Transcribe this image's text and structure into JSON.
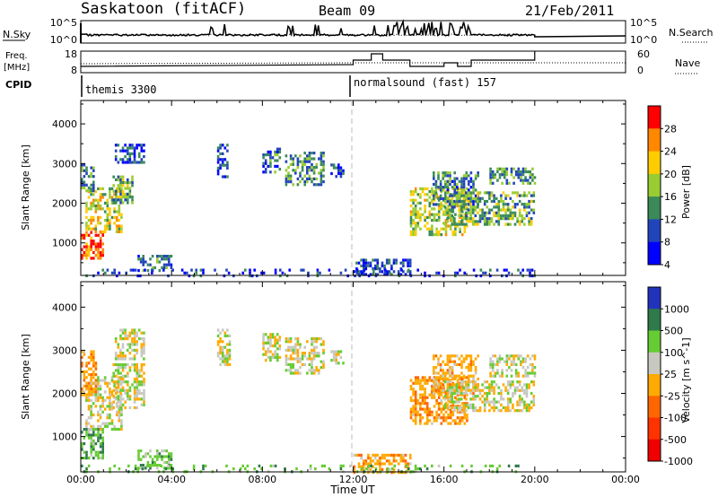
{
  "header": {
    "title": "Saskatoon (fitACF)",
    "beam": "Beam 09",
    "date": "21/Feb/2011"
  },
  "panels": {
    "nsky": {
      "label": "N.Sky",
      "ticks_left": [
        "10^5",
        "10^0"
      ],
      "ticks_right": [
        "10^5",
        "10^0"
      ],
      "right_label": "N.Search"
    },
    "freq": {
      "label_line1": "Freq.",
      "label_line2": "[MHz]",
      "ticks_left": [
        "18",
        "8"
      ],
      "ticks_right": [
        "60",
        "0"
      ],
      "right_label": "Nave"
    },
    "cpid": {
      "label": "CPID",
      "segments": [
        {
          "start": 0,
          "label": "themis 3300"
        },
        {
          "start": 12,
          "label": "normalsound (fast) 157"
        }
      ]
    }
  },
  "chart_data": [
    {
      "type": "heatmap",
      "name": "power",
      "ylabel": "Slant Range [km]",
      "yticks": [
        "4000",
        "3000",
        "2000",
        "1000"
      ],
      "ylim": [
        180,
        4590
      ],
      "colorbar_label": "Power [dB]",
      "colorbar_ticks": [
        "28",
        "24",
        "20",
        "16",
        "12",
        "8",
        "4"
      ],
      "colors": [
        "#0000ff",
        "#2244bb",
        "#3a8a5a",
        "#99cc33",
        "#ffcc00",
        "#ff8800",
        "#ff0000"
      ],
      "regions": [
        {
          "t": [
            0.0,
            1.0
          ],
          "r": [
            600,
            1300
          ],
          "v": 26
        },
        {
          "t": [
            0.2,
            1.8
          ],
          "r": [
            1300,
            2400
          ],
          "v": 18
        },
        {
          "t": [
            1.4,
            2.3
          ],
          "r": [
            2000,
            2700
          ],
          "v": 14
        },
        {
          "t": [
            0.0,
            0.6
          ],
          "r": [
            2300,
            3000
          ],
          "v": 12
        },
        {
          "t": [
            1.5,
            2.8
          ],
          "r": [
            3000,
            3500
          ],
          "v": 8
        },
        {
          "t": [
            2.5,
            4.0
          ],
          "r": [
            300,
            700
          ],
          "v": 10
        },
        {
          "t": [
            6.0,
            6.5
          ],
          "r": [
            2700,
            3500
          ],
          "v": 8
        },
        {
          "t": [
            8.0,
            8.8
          ],
          "r": [
            2800,
            3400
          ],
          "v": 9
        },
        {
          "t": [
            9.0,
            10.7
          ],
          "r": [
            2500,
            3300
          ],
          "v": 12
        },
        {
          "t": [
            11.0,
            11.6
          ],
          "r": [
            2700,
            3000
          ],
          "v": 8
        },
        {
          "t": [
            12.0,
            14.5
          ],
          "r": [
            200,
            600
          ],
          "v": 8
        },
        {
          "t": [
            14.5,
            17.0
          ],
          "r": [
            1200,
            2400
          ],
          "v": 17
        },
        {
          "t": [
            15.5,
            17.5
          ],
          "r": [
            2000,
            2800
          ],
          "v": 11
        },
        {
          "t": [
            16.0,
            20.0
          ],
          "r": [
            1500,
            2300
          ],
          "v": 14
        },
        {
          "t": [
            18.0,
            20.0
          ],
          "r": [
            2500,
            2900
          ],
          "v": 12
        },
        {
          "t": [
            0.0,
            20.0
          ],
          "r": [
            180,
            350
          ],
          "v": 6
        }
      ]
    },
    {
      "type": "heatmap",
      "name": "velocity",
      "ylabel": "Slant Range [km]",
      "yticks": [
        "4000",
        "3000",
        "2000",
        "1000"
      ],
      "ylim": [
        180,
        4590
      ],
      "colorbar_label": "Velocity [m s^-1]",
      "colorbar_ticks": [
        "1000",
        "500",
        "100",
        "25",
        "-25",
        "-100",
        "-500",
        "-1000"
      ],
      "colors": [
        "#2233bb",
        "#2f7a4a",
        "#66cc33",
        "#c8c8c0",
        "#ffaa00",
        "#ff6600",
        "#ff3300",
        "#ee0000"
      ],
      "regions": [
        {
          "t": [
            0.0,
            1.0
          ],
          "r": [
            500,
            1200
          ],
          "v": 80
        },
        {
          "t": [
            0.2,
            1.8
          ],
          "r": [
            1200,
            2400
          ],
          "v": 0
        },
        {
          "t": [
            1.4,
            2.8
          ],
          "r": [
            1700,
            2700
          ],
          "v": 0
        },
        {
          "t": [
            0.0,
            0.7
          ],
          "r": [
            2000,
            3000
          ],
          "v": -80
        },
        {
          "t": [
            1.5,
            2.8
          ],
          "r": [
            2800,
            3500
          ],
          "v": 0
        },
        {
          "t": [
            2.5,
            4.0
          ],
          "r": [
            250,
            700
          ],
          "v": 60
        },
        {
          "t": [
            6.0,
            6.6
          ],
          "r": [
            2700,
            3500
          ],
          "v": 0
        },
        {
          "t": [
            8.0,
            8.8
          ],
          "r": [
            2800,
            3400
          ],
          "v": 0
        },
        {
          "t": [
            9.0,
            10.7
          ],
          "r": [
            2500,
            3300
          ],
          "v": 0
        },
        {
          "t": [
            11.0,
            11.6
          ],
          "r": [
            2700,
            3000
          ],
          "v": 0
        },
        {
          "t": [
            12.0,
            14.5
          ],
          "r": [
            200,
            600
          ],
          "v": -70
        },
        {
          "t": [
            14.5,
            17.0
          ],
          "r": [
            1300,
            2400
          ],
          "v": -80
        },
        {
          "t": [
            15.5,
            17.5
          ],
          "r": [
            2000,
            2900
          ],
          "v": -60
        },
        {
          "t": [
            16.0,
            20.0
          ],
          "r": [
            1600,
            2300
          ],
          "v": 0
        },
        {
          "t": [
            18.0,
            20.0
          ],
          "r": [
            2400,
            2900
          ],
          "v": 0
        },
        {
          "t": [
            0.0,
            20.0
          ],
          "r": [
            180,
            350
          ],
          "v": 70
        }
      ]
    }
  ],
  "x_axis": {
    "label": "Time UT",
    "ticks": [
      "00:00",
      "04:00",
      "08:00",
      "12:00",
      "16:00",
      "20:00",
      "00:00"
    ],
    "range_hours": [
      0,
      24
    ]
  }
}
